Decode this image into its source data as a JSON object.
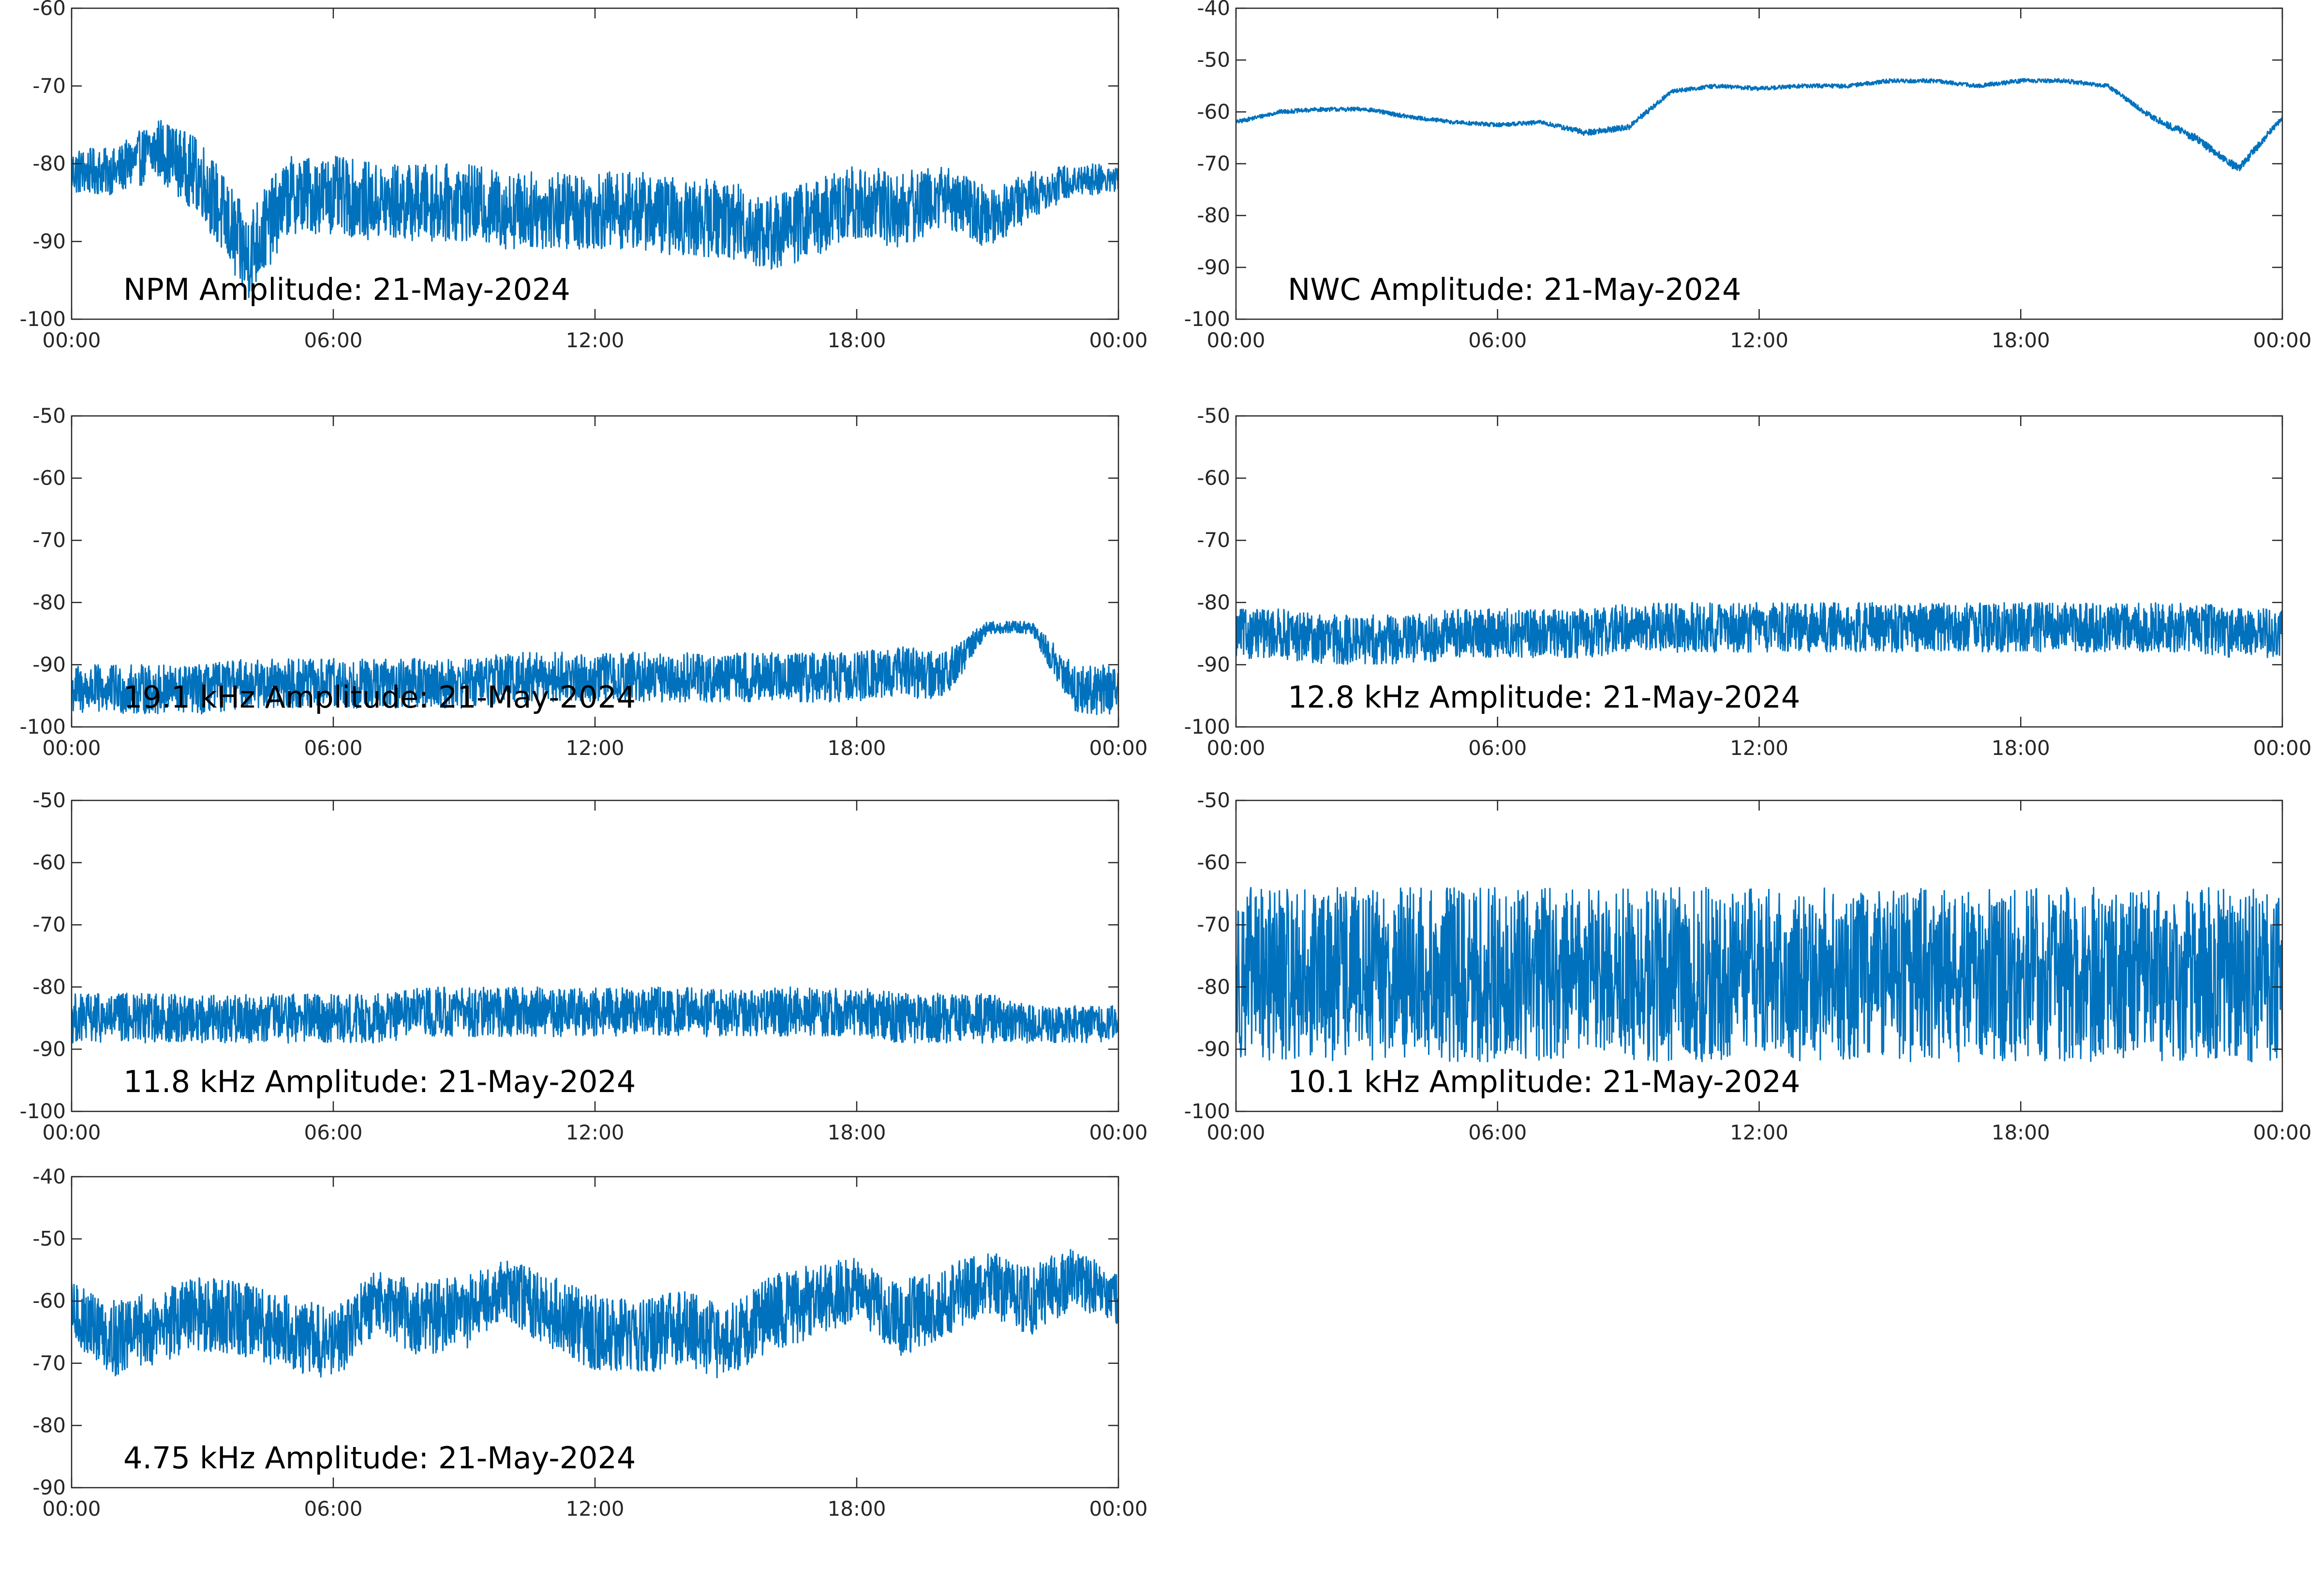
{
  "colors": {
    "trace": "#0072BD",
    "axes": "#262626",
    "background": "#ffffff"
  },
  "chart_data": [
    {
      "type": "line",
      "title": "NPM Amplitude: 21-May-2024",
      "xlabel": "",
      "ylabel": "",
      "x_ticks": [
        "00:00",
        "06:00",
        "12:00",
        "18:00",
        "00:00"
      ],
      "x_hours": [
        0,
        1,
        2,
        3,
        4,
        5,
        6,
        7,
        8,
        9,
        10,
        11,
        12,
        13,
        14,
        15,
        16,
        17,
        18,
        19,
        20,
        21,
        22,
        23,
        24
      ],
      "ylim": [
        -100,
        -60
      ],
      "yticks": [
        -60,
        -70,
        -80,
        -90,
        -100
      ],
      "series": [
        {
          "mean": [
            -81,
            -81,
            -78,
            -82,
            -92,
            -84,
            -84,
            -85,
            -85,
            -85,
            -86,
            -86,
            -86,
            -86,
            -87,
            -87,
            -89,
            -87,
            -85,
            -86,
            -84,
            -87,
            -84,
            -82,
            -82
          ],
          "spread": [
            3,
            3,
            4,
            5,
            6,
            5,
            5,
            5,
            5,
            5,
            5,
            5,
            5,
            5,
            5,
            5,
            5,
            5,
            5,
            5,
            4,
            4,
            3,
            2,
            2
          ]
        }
      ],
      "grid": false
    },
    {
      "type": "line",
      "title": "NWC Amplitude: 21-May-2024",
      "xlabel": "",
      "ylabel": "",
      "x_ticks": [
        "00:00",
        "06:00",
        "12:00",
        "18:00",
        "00:00"
      ],
      "x_hours": [
        0,
        1,
        2,
        3,
        4,
        5,
        6,
        7,
        8,
        9,
        10,
        11,
        12,
        13,
        14,
        15,
        16,
        17,
        18,
        19,
        20,
        21,
        22,
        23,
        24
      ],
      "ylim": [
        -100,
        -40
      ],
      "yticks": [
        -40,
        -50,
        -60,
        -70,
        -80,
        -90,
        -100
      ],
      "series": [
        {
          "mean": [
            -62,
            -60,
            -59.5,
            -59.5,
            -61,
            -62,
            -62.5,
            -62,
            -64,
            -63,
            -56,
            -55,
            -55.5,
            -55,
            -55,
            -54,
            -54,
            -55,
            -54,
            -54,
            -55,
            -61,
            -65,
            -71,
            -61
          ],
          "spread": [
            0.4,
            0.4,
            0.4,
            0.4,
            0.4,
            0.4,
            0.4,
            0.4,
            0.6,
            0.6,
            0.4,
            0.4,
            0.4,
            0.4,
            0.4,
            0.4,
            0.4,
            0.4,
            0.4,
            0.4,
            0.4,
            0.6,
            0.8,
            0.8,
            0.6
          ]
        }
      ],
      "grid": false
    },
    {
      "type": "line",
      "title": "19.1 kHz Amplitude: 21-May-2024",
      "xlabel": "",
      "ylabel": "",
      "x_ticks": [
        "00:00",
        "06:00",
        "12:00",
        "18:00",
        "00:00"
      ],
      "x_hours": [
        0,
        1,
        2,
        3,
        4,
        5,
        6,
        7,
        8,
        9,
        10,
        11,
        12,
        13,
        14,
        15,
        16,
        17,
        18,
        19,
        20,
        21,
        22,
        23,
        24
      ],
      "ylim": [
        -100,
        -50
      ],
      "yticks": [
        -50,
        -60,
        -70,
        -80,
        -90,
        -100
      ],
      "series": [
        {
          "mean": [
            -94,
            -94,
            -94,
            -94,
            -93,
            -93,
            -93,
            -93,
            -93,
            -93,
            -92,
            -92,
            -92,
            -92,
            -92,
            -92,
            -92,
            -92,
            -92,
            -91,
            -92,
            -84,
            -84,
            -94,
            -94
          ],
          "spread": [
            4,
            4,
            4,
            4,
            4,
            4,
            4,
            4,
            4,
            4,
            4,
            4,
            4,
            4,
            4,
            4,
            4,
            4,
            4,
            4,
            4,
            1,
            1,
            4,
            4
          ]
        }
      ],
      "grid": false
    },
    {
      "type": "line",
      "title": "12.8 kHz Amplitude: 21-May-2024",
      "xlabel": "",
      "ylabel": "",
      "x_ticks": [
        "00:00",
        "06:00",
        "12:00",
        "18:00",
        "00:00"
      ],
      "x_hours": [
        0,
        1,
        2,
        3,
        4,
        5,
        6,
        7,
        8,
        9,
        10,
        11,
        12,
        13,
        14,
        15,
        16,
        17,
        18,
        19,
        20,
        21,
        22,
        23,
        24
      ],
      "ylim": [
        -100,
        -50
      ],
      "yticks": [
        -50,
        -60,
        -70,
        -80,
        -90,
        -100
      ],
      "series": [
        {
          "mean": [
            -85,
            -85,
            -86,
            -86,
            -86,
            -85,
            -85,
            -85,
            -85,
            -84,
            -84,
            -84,
            -84,
            -84,
            -84,
            -84,
            -84,
            -84,
            -84,
            -84,
            -84,
            -84,
            -84,
            -85,
            -85
          ],
          "spread": [
            4,
            4,
            4,
            4,
            4,
            4,
            4,
            4,
            4,
            4,
            4,
            4,
            4,
            4,
            4,
            4,
            4,
            4,
            4,
            4,
            4,
            4,
            4,
            4,
            4
          ]
        }
      ],
      "grid": false
    },
    {
      "type": "line",
      "title": "11.8 kHz Amplitude: 21-May-2024",
      "xlabel": "",
      "ylabel": "",
      "x_ticks": [
        "00:00",
        "06:00",
        "12:00",
        "18:00",
        "00:00"
      ],
      "x_hours": [
        0,
        1,
        2,
        3,
        4,
        5,
        6,
        7,
        8,
        9,
        10,
        11,
        12,
        13,
        14,
        15,
        16,
        17,
        18,
        19,
        20,
        21,
        22,
        23,
        24
      ],
      "ylim": [
        -100,
        -50
      ],
      "yticks": [
        -50,
        -60,
        -70,
        -80,
        -90,
        -100
      ],
      "series": [
        {
          "mean": [
            -85,
            -85,
            -85,
            -85,
            -85,
            -85,
            -85,
            -85,
            -84,
            -84,
            -84,
            -84,
            -84,
            -84,
            -84,
            -84,
            -84,
            -84,
            -84,
            -85,
            -85,
            -85,
            -86,
            -86,
            -86
          ],
          "spread": [
            4,
            4,
            4,
            4,
            4,
            4,
            4,
            4,
            4,
            4,
            4,
            4,
            4,
            4,
            4,
            4,
            4,
            4,
            4,
            4,
            4,
            4,
            3,
            3,
            3
          ]
        }
      ],
      "grid": false
    },
    {
      "type": "line",
      "title": "10.1 kHz Amplitude: 21-May-2024",
      "xlabel": "",
      "ylabel": "",
      "x_ticks": [
        "00:00",
        "06:00",
        "12:00",
        "18:00",
        "00:00"
      ],
      "x_hours": [
        0,
        1,
        2,
        3,
        4,
        5,
        6,
        7,
        8,
        9,
        10,
        11,
        12,
        13,
        14,
        15,
        16,
        17,
        18,
        19,
        20,
        21,
        22,
        23,
        24
      ],
      "ylim": [
        -100,
        -50
      ],
      "yticks": [
        -50,
        -60,
        -70,
        -80,
        -90,
        -100
      ],
      "series": [
        {
          "mean": [
            -78,
            -78,
            -78,
            -78,
            -78,
            -78,
            -78,
            -78,
            -78,
            -78,
            -78,
            -78,
            -78,
            -78,
            -78,
            -78,
            -78,
            -78,
            -78,
            -78,
            -78,
            -78,
            -78,
            -78,
            -78
          ],
          "spread": [
            14,
            14,
            14,
            14,
            14,
            14,
            14,
            14,
            14,
            14,
            14,
            14,
            14,
            14,
            14,
            14,
            14,
            14,
            14,
            14,
            14,
            14,
            14,
            14,
            14
          ]
        }
      ],
      "grid": false
    },
    {
      "type": "line",
      "title": "4.75 kHz Amplitude: 21-May-2024",
      "xlabel": "",
      "ylabel": "",
      "x_ticks": [
        "00:00",
        "06:00",
        "12:00",
        "18:00",
        "00:00"
      ],
      "x_hours": [
        0,
        1,
        2,
        3,
        4,
        5,
        6,
        7,
        8,
        9,
        10,
        11,
        12,
        13,
        14,
        15,
        16,
        17,
        18,
        19,
        20,
        21,
        22,
        23,
        24
      ],
      "ylim": [
        -90,
        -40
      ],
      "yticks": [
        -40,
        -50,
        -60,
        -70,
        -80,
        -90
      ],
      "series": [
        {
          "mean": [
            -62,
            -66,
            -64,
            -62,
            -63,
            -65,
            -67,
            -60,
            -63,
            -62,
            -58,
            -62,
            -65,
            -66,
            -64,
            -67,
            -62,
            -60,
            -58,
            -63,
            -60,
            -57,
            -60,
            -56,
            -60
          ],
          "spread": [
            5,
            6,
            6,
            6,
            6,
            6,
            6,
            5,
            6,
            6,
            5,
            6,
            6,
            6,
            6,
            6,
            6,
            6,
            5,
            6,
            6,
            5,
            6,
            5,
            4
          ]
        }
      ],
      "grid": false
    }
  ]
}
